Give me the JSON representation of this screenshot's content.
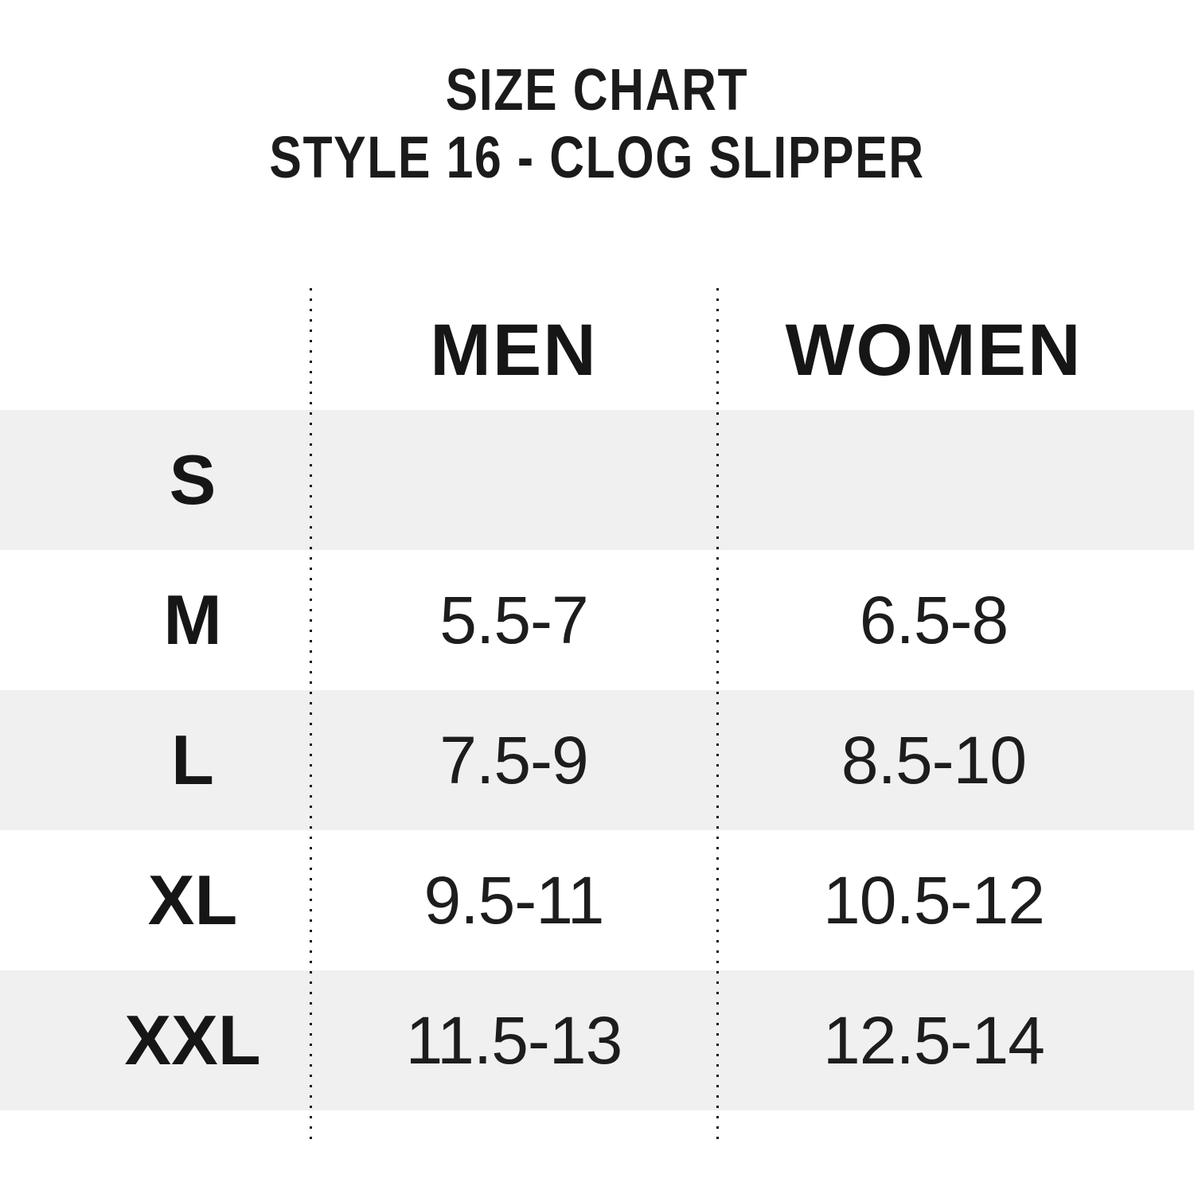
{
  "chart_data": {
    "type": "table",
    "title": "SIZE CHART",
    "subtitle": "STYLE 16 - CLOG SLIPPER",
    "columns": [
      "MEN",
      "WOMEN"
    ],
    "rows": [
      [
        "S",
        "",
        ""
      ],
      [
        "M",
        "5.5-7",
        "6.5-8"
      ],
      [
        "L",
        "7.5-9",
        "8.5-10"
      ],
      [
        "XL",
        "9.5-11",
        "10.5-12"
      ],
      [
        "XXL",
        "11.5-13",
        "12.5-14"
      ]
    ],
    "layout_hints": {
      "row_shading": "alternating, first data row shaded",
      "dividers": "two dotted vertical lines between label/MEN and MEN/WOMEN columns",
      "grid": "off"
    }
  },
  "colors": {
    "background": "#ffffff",
    "row_alt": "#f0f0f1",
    "text": "#1c1c1c",
    "divider": "#161616"
  }
}
